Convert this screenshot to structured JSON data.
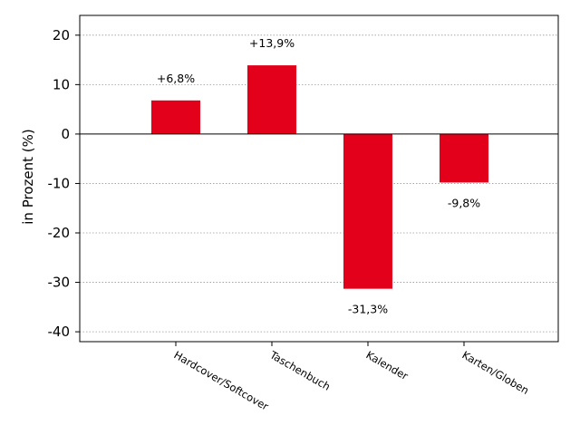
{
  "chart_data": {
    "type": "bar",
    "title": "",
    "xlabel": "",
    "ylabel": "in Prozent (%)",
    "categories": [
      "Hardcover/Softcover",
      "Taschenbuch",
      "Kalender",
      "Karten/Globen"
    ],
    "values": [
      6.8,
      13.9,
      -31.3,
      -9.8
    ],
    "value_labels": [
      "+6,8%",
      "+13,9%",
      "-31,3%",
      "-9,8%"
    ],
    "ylim": [
      -42,
      24
    ],
    "yticks": [
      20,
      10,
      0,
      -10,
      -20,
      -30,
      -40
    ],
    "ytick_labels": [
      "20",
      "10",
      "0",
      "-10",
      "-20",
      "-30",
      "-40"
    ],
    "grid": "horizontal-dotted",
    "bar_color": "#e2001a"
  }
}
